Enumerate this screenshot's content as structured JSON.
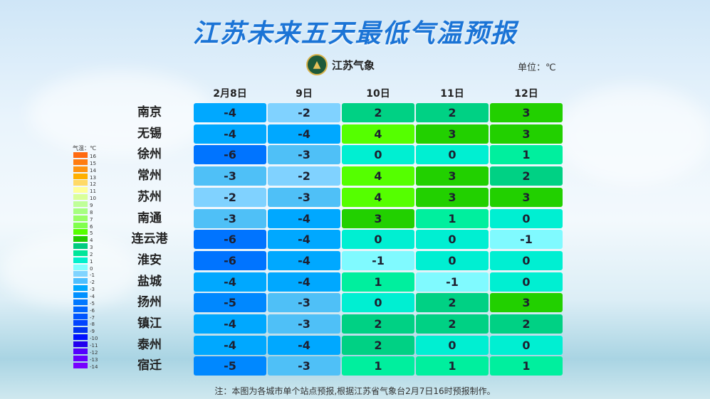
{
  "title": "江苏未来五天最低气温预报",
  "logo_text": "江苏气象",
  "unit": "单位：℃",
  "days": [
    "2月8日",
    "9日",
    "10日",
    "11日",
    "12日"
  ],
  "rows": [
    {
      "city": "南京",
      "values": [
        -4,
        -2,
        2,
        2,
        3
      ]
    },
    {
      "city": "无锡",
      "values": [
        -4,
        -4,
        4,
        3,
        3
      ]
    },
    {
      "city": "徐州",
      "values": [
        -6,
        -3,
        0,
        0,
        1
      ]
    },
    {
      "city": "常州",
      "values": [
        -3,
        -2,
        4,
        3,
        2
      ]
    },
    {
      "city": "苏州",
      "values": [
        -2,
        -3,
        4,
        3,
        3
      ]
    },
    {
      "city": "南通",
      "values": [
        -3,
        -4,
        3,
        1,
        0
      ]
    },
    {
      "city": "连云港",
      "values": [
        -6,
        -4,
        0,
        0,
        -1
      ]
    },
    {
      "city": "淮安",
      "values": [
        -6,
        -4,
        -1,
        0,
        0
      ]
    },
    {
      "city": "盐城",
      "values": [
        -4,
        -4,
        1,
        -1,
        0
      ]
    },
    {
      "city": "扬州",
      "values": [
        -5,
        -3,
        0,
        2,
        3
      ]
    },
    {
      "city": "镇江",
      "values": [
        -4,
        -3,
        2,
        2,
        2
      ]
    },
    {
      "city": "泰州",
      "values": [
        -4,
        -4,
        2,
        0,
        0
      ]
    },
    {
      "city": "宿迁",
      "values": [
        -5,
        -3,
        1,
        1,
        1
      ]
    }
  ],
  "legend": {
    "title": "气温：℃",
    "items": [
      {
        "v": 16,
        "c": "#ff6a10"
      },
      {
        "v": 15,
        "c": "#ff7c10"
      },
      {
        "v": 14,
        "c": "#ff9410"
      },
      {
        "v": 13,
        "c": "#ffb000"
      },
      {
        "v": 12,
        "c": "#ffd966"
      },
      {
        "v": 11,
        "c": "#ffff99"
      },
      {
        "v": 10,
        "c": "#d9ff99"
      },
      {
        "v": 9,
        "c": "#bfff99"
      },
      {
        "v": 8,
        "c": "#a6ff80"
      },
      {
        "v": 7,
        "c": "#99ff66"
      },
      {
        "v": 6,
        "c": "#80ff4d"
      },
      {
        "v": 5,
        "c": "#55ff00"
      },
      {
        "v": 4,
        "c": "#22cc00"
      },
      {
        "v": 3,
        "c": "#00cc80"
      },
      {
        "v": 2,
        "c": "#00e699"
      },
      {
        "v": 1,
        "c": "#00f0cc"
      },
      {
        "v": 0,
        "c": "#80ffff"
      },
      {
        "v": -1,
        "c": "#80d4ff"
      },
      {
        "v": -2,
        "c": "#4dbfff"
      },
      {
        "v": -3,
        "c": "#00a8ff"
      },
      {
        "v": -4,
        "c": "#0090ff"
      },
      {
        "v": -5,
        "c": "#0078ff"
      },
      {
        "v": -6,
        "c": "#0066ff"
      },
      {
        "v": -7,
        "c": "#0055ff"
      },
      {
        "v": -8,
        "c": "#0044ff"
      },
      {
        "v": -9,
        "c": "#0033f0"
      },
      {
        "v": -10,
        "c": "#0011ff"
      },
      {
        "v": -11,
        "c": "#2200ee"
      },
      {
        "v": -12,
        "c": "#5500ff"
      },
      {
        "v": -13,
        "c": "#6600ff"
      },
      {
        "v": -14,
        "c": "#7700ff"
      }
    ]
  },
  "cell_colors": {
    "-6": "#0074ff",
    "-5": "#0088ff",
    "-4": "#00a8ff",
    "-3": "#4fc0f7",
    "-2": "#80d2ff",
    "-1": "#80faff",
    "0": "#00efd2",
    "1": "#00ef9e",
    "2": "#00d184",
    "3": "#22d000",
    "4": "#55ff00"
  },
  "note": "注：本图为各城市单个站点预报,根据江苏省气象台2月7日16时预报制作。"
}
